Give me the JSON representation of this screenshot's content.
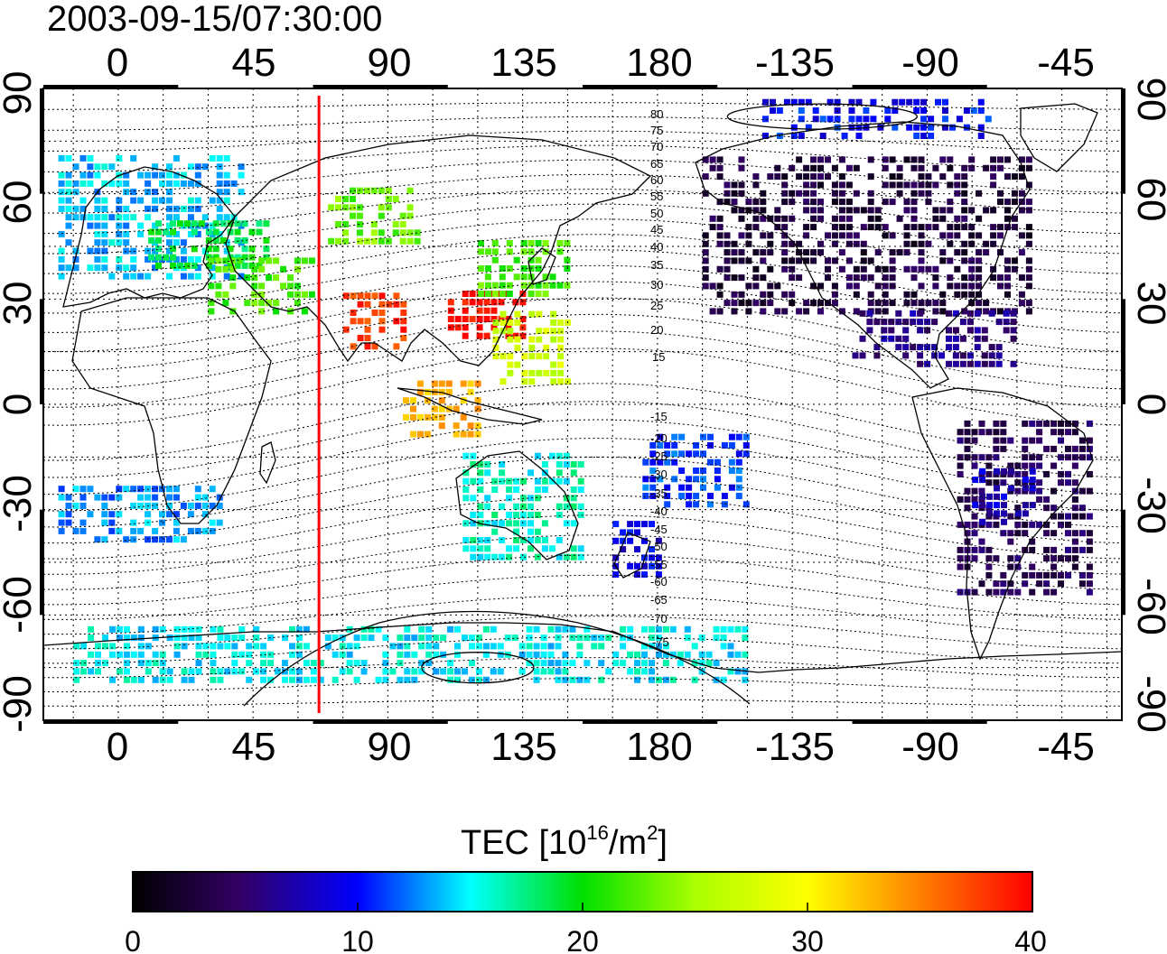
{
  "title": "2003-09-15/07:30:00",
  "map": {
    "lon_ticks": [
      "0",
      "45",
      "90",
      "135",
      "180",
      "-135",
      "-90",
      "-45"
    ],
    "lat_ticks": [
      "90",
      "60",
      "30",
      "0",
      "-30",
      "-60",
      "-90"
    ],
    "lon_range": [
      -25,
      335
    ],
    "lat_range": [
      -90,
      90
    ],
    "grid": true,
    "marker_meridian_lon": 67,
    "marker_color": "#ff0000",
    "contour_labels_north": [
      "80",
      "75",
      "70",
      "65",
      "60",
      "55",
      "50",
      "45",
      "40",
      "35",
      "30",
      "25",
      "20",
      "15"
    ],
    "contour_labels_south": [
      "-15",
      "-20",
      "-25",
      "-30",
      "-35",
      "-40",
      "-45",
      "-50",
      "-55",
      "-60",
      "-65",
      "-70",
      "-75"
    ]
  },
  "colorbar": {
    "title": "TEC  [10",
    "title_sup1": "16",
    "title_mid": "/m",
    "title_sup2": "2",
    "title_end": "]",
    "ticks": [
      "0",
      "10",
      "20",
      "30",
      "40"
    ],
    "range": [
      0,
      40
    ]
  },
  "chart_data": {
    "type": "heatmap",
    "title": "2003-09-15/07:30:00",
    "quantity": "TEC  [10^16/m^2]",
    "xlabel": "",
    "ylabel": "",
    "xlim": [
      -25,
      335
    ],
    "ylim": [
      -90,
      90
    ],
    "vlim": [
      0,
      40
    ],
    "regions": [
      {
        "lon": [
          -20,
          40
        ],
        "lat": [
          35,
          70
        ],
        "tec": 14
      },
      {
        "lon": [
          10,
          50
        ],
        "lat": [
          38,
          52
        ],
        "tec": 19
      },
      {
        "lon": [
          30,
          65
        ],
        "lat": [
          25,
          40
        ],
        "tec": 22
      },
      {
        "lon": [
          70,
          100
        ],
        "lat": [
          45,
          60
        ],
        "tec": 23
      },
      {
        "lon": [
          75,
          95
        ],
        "lat": [
          15,
          30
        ],
        "tec": 38
      },
      {
        "lon": [
          110,
          135
        ],
        "lat": [
          18,
          32
        ],
        "tec": 40
      },
      {
        "lon": [
          120,
          150
        ],
        "lat": [
          30,
          45
        ],
        "tec": 22
      },
      {
        "lon": [
          95,
          120
        ],
        "lat": [
          -10,
          5
        ],
        "tec": 33
      },
      {
        "lon": [
          125,
          150
        ],
        "lat": [
          5,
          25
        ],
        "tec": 27
      },
      {
        "lon": [
          115,
          155
        ],
        "lat": [
          -45,
          -15
        ],
        "tec": 16
      },
      {
        "lon": [
          165,
          180
        ],
        "lat": [
          -50,
          -35
        ],
        "tec": 9
      },
      {
        "lon": [
          175,
          210
        ],
        "lat": [
          -30,
          -10
        ],
        "tec": 11
      },
      {
        "lon": [
          -20,
          35
        ],
        "lat": [
          -40,
          -25
        ],
        "tec": 13
      },
      {
        "lon": [
          195,
          305
        ],
        "lat": [
          25,
          70
        ],
        "tec": 3
      },
      {
        "lon": [
          245,
          300
        ],
        "lat": [
          10,
          25
        ],
        "tec": 6
      },
      {
        "lon": [
          280,
          325
        ],
        "lat": [
          -55,
          -5
        ],
        "tec": 4
      },
      {
        "lon": [
          285,
          305
        ],
        "lat": [
          -35,
          -20
        ],
        "tec": 8
      },
      {
        "lon": [
          -15,
          210
        ],
        "lat": [
          -80,
          -65
        ],
        "tec": 15
      },
      {
        "lon": [
          215,
          290
        ],
        "lat": [
          75,
          85
        ],
        "tec": 10
      }
    ]
  }
}
